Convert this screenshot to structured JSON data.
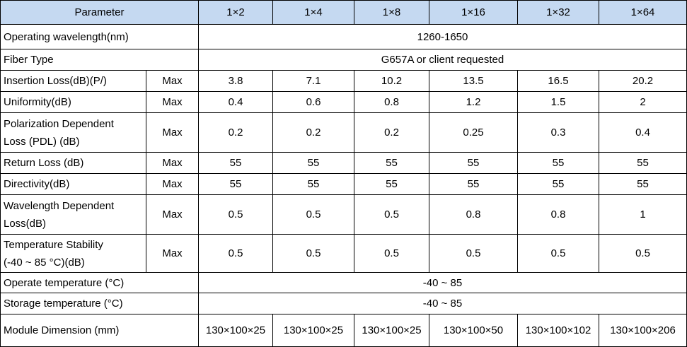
{
  "table": {
    "header": [
      "Parameter",
      "1×2",
      "1×4",
      "1×8",
      "1×16",
      "1×32",
      "1×64"
    ],
    "rows": [
      {
        "label": [
          "Operating wavelength(nm)"
        ],
        "value": "1260-1650"
      },
      {
        "label": [
          "Fiber Type"
        ],
        "value": "G657A or client requested"
      },
      {
        "label": [
          "Insertion Loss(dB)(P/)"
        ],
        "qualifier": "Max",
        "values": [
          "3.8",
          "7.1",
          "10.2",
          "13.5",
          "16.5",
          "20.2"
        ]
      },
      {
        "label": [
          "Uniformity(dB)"
        ],
        "qualifier": "Max",
        "values": [
          "0.4",
          "0.6",
          "0.8",
          "1.2",
          "1.5",
          "2"
        ]
      },
      {
        "label": [
          "Polarization Dependent",
          "Loss (PDL) (dB)"
        ],
        "qualifier": "Max",
        "values": [
          "0.2",
          "0.2",
          "0.2",
          "0.25",
          "0.3",
          "0.4"
        ]
      },
      {
        "label": [
          "Return Loss (dB)"
        ],
        "qualifier": "Max",
        "values": [
          "55",
          "55",
          "55",
          "55",
          "55",
          "55"
        ]
      },
      {
        "label": [
          "Directivity(dB)"
        ],
        "qualifier": "Max",
        "values": [
          "55",
          "55",
          "55",
          "55",
          "55",
          "55"
        ]
      },
      {
        "label": [
          "Wavelength Dependent",
          "Loss(dB)"
        ],
        "qualifier": "Max",
        "values": [
          "0.5",
          "0.5",
          "0.5",
          "0.8",
          "0.8",
          "1"
        ]
      },
      {
        "label": [
          "Temperature Stability",
          "(-40 ~ 85 °C)(dB)"
        ],
        "qualifier": "Max",
        "values": [
          "0.5",
          "0.5",
          "0.5",
          "0.5",
          "0.5",
          "0.5"
        ]
      },
      {
        "label": [
          "Operate temperature (°C)"
        ],
        "value": "-40 ~ 85"
      },
      {
        "label": [
          "Storage temperature (°C)"
        ],
        "value": "-40 ~ 85"
      },
      {
        "label": [
          "Module Dimension (mm)"
        ],
        "values": [
          "130×100×25",
          "130×100×25",
          "130×100×25",
          "130×100×50",
          "130×100×102",
          "130×100×206"
        ]
      }
    ]
  }
}
